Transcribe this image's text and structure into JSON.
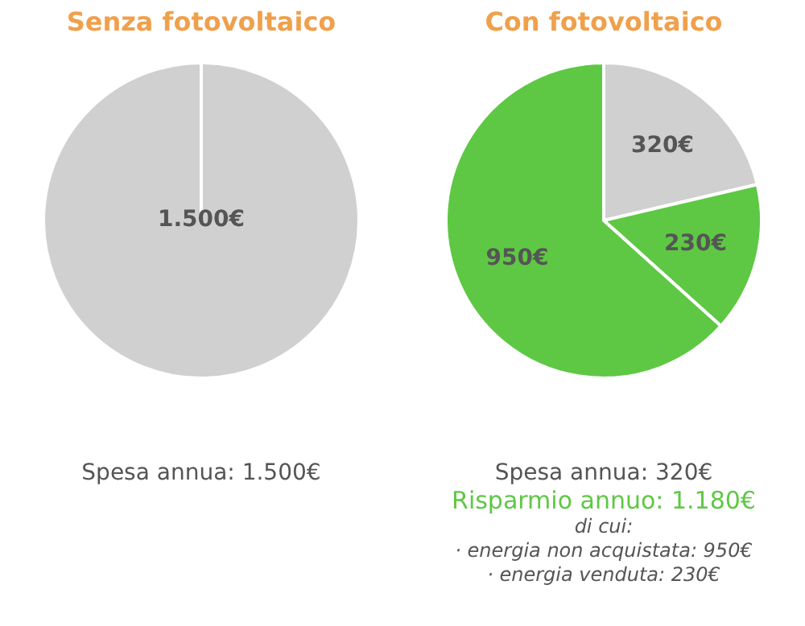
{
  "chart_data": [
    {
      "type": "pie",
      "title": "Senza fotovoltaico",
      "categories": [
        null
      ],
      "values": [
        1500
      ],
      "colors": [
        "#d0d0d0"
      ],
      "value_labels": [
        "1.500€"
      ],
      "annotations": [
        "Spesa annua: 1.500€"
      ]
    },
    {
      "type": "pie",
      "title": "Con fotovoltaico",
      "categories": [
        null,
        null,
        null
      ],
      "values": [
        320,
        230,
        950
      ],
      "colors": [
        "#d0d0d0",
        "#5ec844",
        "#5ec844"
      ],
      "value_labels": [
        "320€",
        "230€",
        "950€"
      ],
      "annotations": [
        "Spesa annua: 320€",
        "Risparmio annuo: 1.180€",
        "di cui:",
        "· energia non acquistata: 950€",
        "· energia venduta: 230€"
      ]
    }
  ]
}
